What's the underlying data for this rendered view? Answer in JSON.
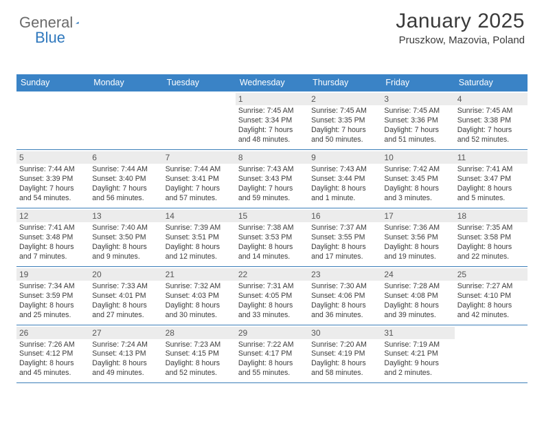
{
  "logo": {
    "word1": "General",
    "word2": "Blue",
    "triangle_color": "#2f78bd"
  },
  "header": {
    "month": "January 2025",
    "location": "Pruszkow, Mazovia, Poland"
  },
  "colors": {
    "header_bg": "#3a83c6",
    "header_fg": "#ffffff",
    "row_divider": "#3a7db8",
    "daynum_bg": "#ececec",
    "text": "#3a3a3a"
  },
  "dayNames": [
    "Sunday",
    "Monday",
    "Tuesday",
    "Wednesday",
    "Thursday",
    "Friday",
    "Saturday"
  ],
  "weeks": [
    [
      {
        "n": "",
        "sr": "",
        "ss": "",
        "dl": ""
      },
      {
        "n": "",
        "sr": "",
        "ss": "",
        "dl": ""
      },
      {
        "n": "",
        "sr": "",
        "ss": "",
        "dl": ""
      },
      {
        "n": "1",
        "sr": "Sunrise: 7:45 AM",
        "ss": "Sunset: 3:34 PM",
        "dl": "Daylight: 7 hours and 48 minutes."
      },
      {
        "n": "2",
        "sr": "Sunrise: 7:45 AM",
        "ss": "Sunset: 3:35 PM",
        "dl": "Daylight: 7 hours and 50 minutes."
      },
      {
        "n": "3",
        "sr": "Sunrise: 7:45 AM",
        "ss": "Sunset: 3:36 PM",
        "dl": "Daylight: 7 hours and 51 minutes."
      },
      {
        "n": "4",
        "sr": "Sunrise: 7:45 AM",
        "ss": "Sunset: 3:38 PM",
        "dl": "Daylight: 7 hours and 52 minutes."
      }
    ],
    [
      {
        "n": "5",
        "sr": "Sunrise: 7:44 AM",
        "ss": "Sunset: 3:39 PM",
        "dl": "Daylight: 7 hours and 54 minutes."
      },
      {
        "n": "6",
        "sr": "Sunrise: 7:44 AM",
        "ss": "Sunset: 3:40 PM",
        "dl": "Daylight: 7 hours and 56 minutes."
      },
      {
        "n": "7",
        "sr": "Sunrise: 7:44 AM",
        "ss": "Sunset: 3:41 PM",
        "dl": "Daylight: 7 hours and 57 minutes."
      },
      {
        "n": "8",
        "sr": "Sunrise: 7:43 AM",
        "ss": "Sunset: 3:43 PM",
        "dl": "Daylight: 7 hours and 59 minutes."
      },
      {
        "n": "9",
        "sr": "Sunrise: 7:43 AM",
        "ss": "Sunset: 3:44 PM",
        "dl": "Daylight: 8 hours and 1 minute."
      },
      {
        "n": "10",
        "sr": "Sunrise: 7:42 AM",
        "ss": "Sunset: 3:45 PM",
        "dl": "Daylight: 8 hours and 3 minutes."
      },
      {
        "n": "11",
        "sr": "Sunrise: 7:41 AM",
        "ss": "Sunset: 3:47 PM",
        "dl": "Daylight: 8 hours and 5 minutes."
      }
    ],
    [
      {
        "n": "12",
        "sr": "Sunrise: 7:41 AM",
        "ss": "Sunset: 3:48 PM",
        "dl": "Daylight: 8 hours and 7 minutes."
      },
      {
        "n": "13",
        "sr": "Sunrise: 7:40 AM",
        "ss": "Sunset: 3:50 PM",
        "dl": "Daylight: 8 hours and 9 minutes."
      },
      {
        "n": "14",
        "sr": "Sunrise: 7:39 AM",
        "ss": "Sunset: 3:51 PM",
        "dl": "Daylight: 8 hours and 12 minutes."
      },
      {
        "n": "15",
        "sr": "Sunrise: 7:38 AM",
        "ss": "Sunset: 3:53 PM",
        "dl": "Daylight: 8 hours and 14 minutes."
      },
      {
        "n": "16",
        "sr": "Sunrise: 7:37 AM",
        "ss": "Sunset: 3:55 PM",
        "dl": "Daylight: 8 hours and 17 minutes."
      },
      {
        "n": "17",
        "sr": "Sunrise: 7:36 AM",
        "ss": "Sunset: 3:56 PM",
        "dl": "Daylight: 8 hours and 19 minutes."
      },
      {
        "n": "18",
        "sr": "Sunrise: 7:35 AM",
        "ss": "Sunset: 3:58 PM",
        "dl": "Daylight: 8 hours and 22 minutes."
      }
    ],
    [
      {
        "n": "19",
        "sr": "Sunrise: 7:34 AM",
        "ss": "Sunset: 3:59 PM",
        "dl": "Daylight: 8 hours and 25 minutes."
      },
      {
        "n": "20",
        "sr": "Sunrise: 7:33 AM",
        "ss": "Sunset: 4:01 PM",
        "dl": "Daylight: 8 hours and 27 minutes."
      },
      {
        "n": "21",
        "sr": "Sunrise: 7:32 AM",
        "ss": "Sunset: 4:03 PM",
        "dl": "Daylight: 8 hours and 30 minutes."
      },
      {
        "n": "22",
        "sr": "Sunrise: 7:31 AM",
        "ss": "Sunset: 4:05 PM",
        "dl": "Daylight: 8 hours and 33 minutes."
      },
      {
        "n": "23",
        "sr": "Sunrise: 7:30 AM",
        "ss": "Sunset: 4:06 PM",
        "dl": "Daylight: 8 hours and 36 minutes."
      },
      {
        "n": "24",
        "sr": "Sunrise: 7:28 AM",
        "ss": "Sunset: 4:08 PM",
        "dl": "Daylight: 8 hours and 39 minutes."
      },
      {
        "n": "25",
        "sr": "Sunrise: 7:27 AM",
        "ss": "Sunset: 4:10 PM",
        "dl": "Daylight: 8 hours and 42 minutes."
      }
    ],
    [
      {
        "n": "26",
        "sr": "Sunrise: 7:26 AM",
        "ss": "Sunset: 4:12 PM",
        "dl": "Daylight: 8 hours and 45 minutes."
      },
      {
        "n": "27",
        "sr": "Sunrise: 7:24 AM",
        "ss": "Sunset: 4:13 PM",
        "dl": "Daylight: 8 hours and 49 minutes."
      },
      {
        "n": "28",
        "sr": "Sunrise: 7:23 AM",
        "ss": "Sunset: 4:15 PM",
        "dl": "Daylight: 8 hours and 52 minutes."
      },
      {
        "n": "29",
        "sr": "Sunrise: 7:22 AM",
        "ss": "Sunset: 4:17 PM",
        "dl": "Daylight: 8 hours and 55 minutes."
      },
      {
        "n": "30",
        "sr": "Sunrise: 7:20 AM",
        "ss": "Sunset: 4:19 PM",
        "dl": "Daylight: 8 hours and 58 minutes."
      },
      {
        "n": "31",
        "sr": "Sunrise: 7:19 AM",
        "ss": "Sunset: 4:21 PM",
        "dl": "Daylight: 9 hours and 2 minutes."
      },
      {
        "n": "",
        "sr": "",
        "ss": "",
        "dl": ""
      }
    ]
  ]
}
